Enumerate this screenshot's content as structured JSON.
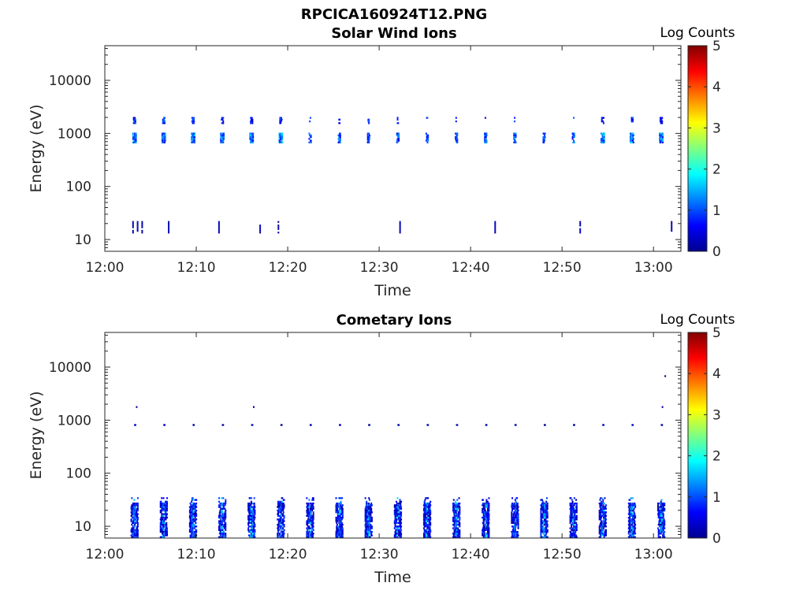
{
  "figure_title": "RPCICA160924T12.PNG",
  "chart_data": [
    {
      "type": "heatmap",
      "title": "Solar Wind Ions",
      "xlabel": "Time",
      "ylabel": "Energy (eV)",
      "x_tick_labels": [
        "12:00",
        "12:10",
        "12:20",
        "12:30",
        "12:40",
        "12:50",
        "13:00"
      ],
      "y_tick_labels": [
        "10",
        "100",
        "1000",
        "10000"
      ],
      "y_scale": "log",
      "x_range_minutes": [
        0,
        63
      ],
      "y_range": [
        6,
        45000
      ],
      "colorbar_label": "Log Counts",
      "colorbar_ticks": [
        "0",
        "1",
        "2",
        "3",
        "4",
        "5"
      ],
      "colormap": "jet",
      "sweeps_minutes": [
        3.2,
        6.4,
        9.6,
        12.8,
        16.0,
        19.2,
        22.4,
        25.6,
        28.8,
        32.0,
        35.2,
        38.4,
        41.6,
        44.8,
        48.0,
        51.2,
        54.4,
        57.6,
        60.8
      ],
      "features": [
        {
          "label": "main band",
          "energy_eV": [
            650,
            1000
          ],
          "log_counts": [
            0.5,
            1.8
          ]
        },
        {
          "label": "alpha band",
          "energy_eV": [
            1500,
            2000
          ],
          "log_counts": [
            0.3,
            1.2
          ]
        },
        {
          "label": "low-energy streaks",
          "energy_eV": [
            13,
            22
          ],
          "log_counts": [
            0.1,
            0.4
          ],
          "minutes": [
            3.0,
            3.5,
            4.0,
            6.9,
            12.4,
            16.9,
            18.9,
            32.2,
            42.6,
            51.9,
            61.9
          ]
        }
      ]
    },
    {
      "type": "heatmap",
      "title": "Cometary Ions",
      "xlabel": "Time",
      "ylabel": "Energy (eV)",
      "x_tick_labels": [
        "12:00",
        "12:10",
        "12:20",
        "12:30",
        "12:40",
        "12:50",
        "13:00"
      ],
      "y_tick_labels": [
        "10",
        "100",
        "1000",
        "10000"
      ],
      "y_scale": "log",
      "x_range_minutes": [
        0,
        63
      ],
      "y_range": [
        6,
        45000
      ],
      "colorbar_label": "Log Counts",
      "colorbar_ticks": [
        "0",
        "1",
        "2",
        "3",
        "4",
        "5"
      ],
      "colormap": "jet",
      "sweeps_minutes": [
        3.2,
        6.4,
        9.6,
        12.8,
        16.0,
        19.2,
        22.4,
        25.6,
        28.8,
        32.0,
        35.2,
        38.4,
        41.6,
        44.8,
        48.0,
        51.2,
        54.4,
        57.6,
        60.8
      ],
      "features": [
        {
          "label": "low-energy cometary population",
          "energy_eV": [
            6,
            35
          ],
          "log_counts": [
            0.1,
            1.8
          ]
        },
        {
          "label": "solar wind dots",
          "energy_eV": [
            780,
            850
          ],
          "log_counts": [
            0.1,
            0.5
          ]
        },
        {
          "label": "high-energy dots",
          "energy_eV": [
            1700,
            6500
          ],
          "log_counts": [
            0.1,
            0.3
          ]
        }
      ]
    }
  ]
}
